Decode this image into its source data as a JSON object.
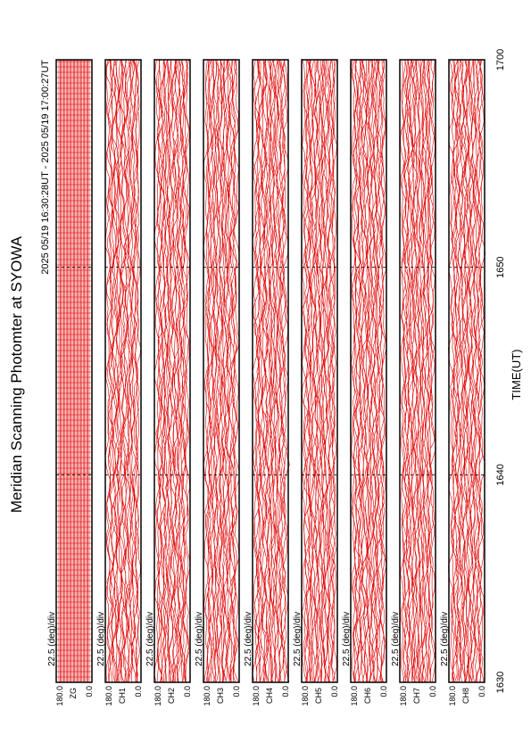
{
  "header": {
    "title": "Meridian Scanning Photomter at SYOWA",
    "subtitle": "2025 05/19 16:30:28UT - 2025 05/19 17:00:27UT"
  },
  "x_axis": {
    "label": "TIME(UT)",
    "ticks": [
      "1630",
      "1640",
      "1650",
      "1700"
    ]
  },
  "panels": [
    {
      "channel": "ZG",
      "scale": "22.5 (deg)/div",
      "y_top": "180.0",
      "y_bottom": "0.0"
    },
    {
      "channel": "CH1",
      "scale": "22.5 (deg)/div",
      "y_top": "180.0",
      "y_bottom": "0.0"
    },
    {
      "channel": "CH2",
      "scale": "22.5 (deg)/div",
      "y_top": "180.0",
      "y_bottom": "0.0"
    },
    {
      "channel": "CH3",
      "scale": "22.5 (deg)/div",
      "y_top": "180.0",
      "y_bottom": "0.0"
    },
    {
      "channel": "CH4",
      "scale": "22.5 (deg)/div",
      "y_top": "180.0",
      "y_bottom": "0.0"
    },
    {
      "channel": "CH5",
      "scale": "22.5 (deg)/div",
      "y_top": "180.0",
      "y_bottom": "0.0"
    },
    {
      "channel": "CH6",
      "scale": "22.5 (deg)/div",
      "y_top": "180.0",
      "y_bottom": "0.0"
    },
    {
      "channel": "CH7",
      "scale": "22.5 (deg)/div",
      "y_top": "180.0",
      "y_bottom": "0.0"
    },
    {
      "channel": "CH8",
      "scale": "22.5 (deg)/div",
      "y_top": "180.0",
      "y_bottom": "0.0"
    }
  ]
}
